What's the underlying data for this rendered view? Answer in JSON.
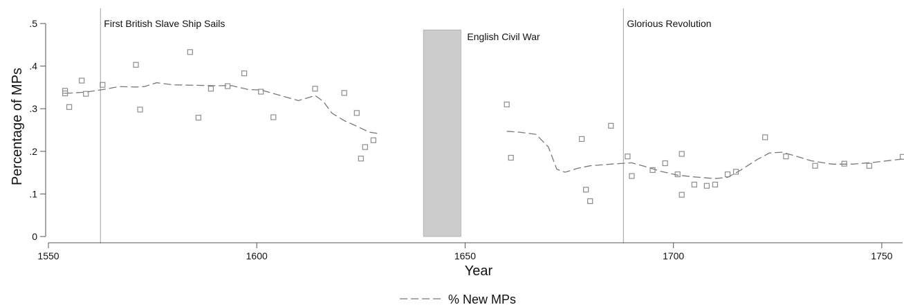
{
  "chart_data": {
    "type": "scatter",
    "title": "",
    "xlabel": "Year",
    "ylabel": "Percentage of MPs",
    "xlim": [
      1550,
      1755
    ],
    "ylim": [
      0,
      0.5
    ],
    "xticks": [
      {
        "value": 1550,
        "label": "1550"
      },
      {
        "value": 1600,
        "label": "1600"
      },
      {
        "value": 1650,
        "label": "1650"
      },
      {
        "value": 1700,
        "label": "1700"
      },
      {
        "value": 1750,
        "label": "1750"
      }
    ],
    "yticks": [
      {
        "value": 0,
        "label": "0"
      },
      {
        "value": 0.1,
        "label": ".1"
      },
      {
        "value": 0.2,
        "label": ".2"
      },
      {
        "value": 0.3,
        "label": ".3"
      },
      {
        "value": 0.4,
        "label": ".4"
      },
      {
        "value": 0.5,
        "label": ".5"
      }
    ],
    "grid": false,
    "legend_position": "bottom",
    "colors": {
      "markers": "#8c8c8c",
      "line": "#777777",
      "shade": "#cccccc",
      "vline": "#b0b0b0"
    },
    "scatter_points": [
      {
        "x": 1554,
        "y": 0.342
      },
      {
        "x": 1554,
        "y": 0.336
      },
      {
        "x": 1555,
        "y": 0.304
      },
      {
        "x": 1558,
        "y": 0.366
      },
      {
        "x": 1559,
        "y": 0.335
      },
      {
        "x": 1563,
        "y": 0.356
      },
      {
        "x": 1571,
        "y": 0.403
      },
      {
        "x": 1572,
        "y": 0.298
      },
      {
        "x": 1584,
        "y": 0.433
      },
      {
        "x": 1586,
        "y": 0.279
      },
      {
        "x": 1589,
        "y": 0.347
      },
      {
        "x": 1593,
        "y": 0.353
      },
      {
        "x": 1597,
        "y": 0.383
      },
      {
        "x": 1601,
        "y": 0.34
      },
      {
        "x": 1604,
        "y": 0.28
      },
      {
        "x": 1614,
        "y": 0.347
      },
      {
        "x": 1621,
        "y": 0.337
      },
      {
        "x": 1624,
        "y": 0.29
      },
      {
        "x": 1625,
        "y": 0.183
      },
      {
        "x": 1626,
        "y": 0.21
      },
      {
        "x": 1628,
        "y": 0.226
      },
      {
        "x": 1660,
        "y": 0.31
      },
      {
        "x": 1661,
        "y": 0.185
      },
      {
        "x": 1678,
        "y": 0.229
      },
      {
        "x": 1679,
        "y": 0.11
      },
      {
        "x": 1680,
        "y": 0.083
      },
      {
        "x": 1685,
        "y": 0.26
      },
      {
        "x": 1689,
        "y": 0.188
      },
      {
        "x": 1690,
        "y": 0.142
      },
      {
        "x": 1695,
        "y": 0.156
      },
      {
        "x": 1698,
        "y": 0.172
      },
      {
        "x": 1701,
        "y": 0.146
      },
      {
        "x": 1702,
        "y": 0.194
      },
      {
        "x": 1702,
        "y": 0.098
      },
      {
        "x": 1705,
        "y": 0.122
      },
      {
        "x": 1708,
        "y": 0.119
      },
      {
        "x": 1710,
        "y": 0.122
      },
      {
        "x": 1713,
        "y": 0.146
      },
      {
        "x": 1715,
        "y": 0.152
      },
      {
        "x": 1722,
        "y": 0.233
      },
      {
        "x": 1727,
        "y": 0.188
      },
      {
        "x": 1734,
        "y": 0.166
      },
      {
        "x": 1741,
        "y": 0.171
      },
      {
        "x": 1747,
        "y": 0.166
      },
      {
        "x": 1755,
        "y": 0.187
      }
    ],
    "series": [
      {
        "name": "% New MPs",
        "segments": [
          [
            [
              1554,
              0.336
            ],
            [
              1559,
              0.339
            ],
            [
              1563,
              0.345
            ],
            [
              1567,
              0.352
            ],
            [
              1571,
              0.351
            ],
            [
              1573,
              0.352
            ],
            [
              1576,
              0.361
            ],
            [
              1580,
              0.356
            ],
            [
              1585,
              0.355
            ],
            [
              1590,
              0.354
            ],
            [
              1594,
              0.354
            ],
            [
              1598,
              0.345
            ],
            [
              1601,
              0.344
            ],
            [
              1605,
              0.333
            ],
            [
              1610,
              0.319
            ],
            [
              1613,
              0.328
            ],
            [
              1614,
              0.331
            ],
            [
              1616,
              0.317
            ],
            [
              1618,
              0.29
            ],
            [
              1621,
              0.272
            ],
            [
              1624,
              0.259
            ],
            [
              1627,
              0.245
            ],
            [
              1629,
              0.242
            ]
          ],
          [
            [
              1660,
              0.247
            ],
            [
              1663,
              0.245
            ],
            [
              1667,
              0.24
            ],
            [
              1670,
              0.21
            ],
            [
              1672,
              0.158
            ],
            [
              1674,
              0.151
            ],
            [
              1677,
              0.16
            ],
            [
              1680,
              0.166
            ],
            [
              1685,
              0.17
            ],
            [
              1690,
              0.173
            ],
            [
              1693,
              0.165
            ],
            [
              1697,
              0.153
            ],
            [
              1701,
              0.144
            ],
            [
              1705,
              0.14
            ],
            [
              1710,
              0.136
            ],
            [
              1713,
              0.139
            ],
            [
              1716,
              0.155
            ],
            [
              1720,
              0.18
            ],
            [
              1723,
              0.196
            ],
            [
              1726,
              0.198
            ],
            [
              1729,
              0.19
            ],
            [
              1733,
              0.178
            ],
            [
              1738,
              0.17
            ],
            [
              1743,
              0.17
            ],
            [
              1748,
              0.174
            ],
            [
              1755,
              0.182
            ]
          ]
        ]
      }
    ],
    "vertical_lines": [
      {
        "x": 1562.5,
        "label": "First British Slave Ship Sails"
      },
      {
        "x": 1688,
        "label": "Glorious Revolution"
      }
    ],
    "shaded_regions": [
      {
        "x_start": 1640,
        "x_end": 1649,
        "y_max": 0.485,
        "label": "English Civil War"
      }
    ]
  }
}
